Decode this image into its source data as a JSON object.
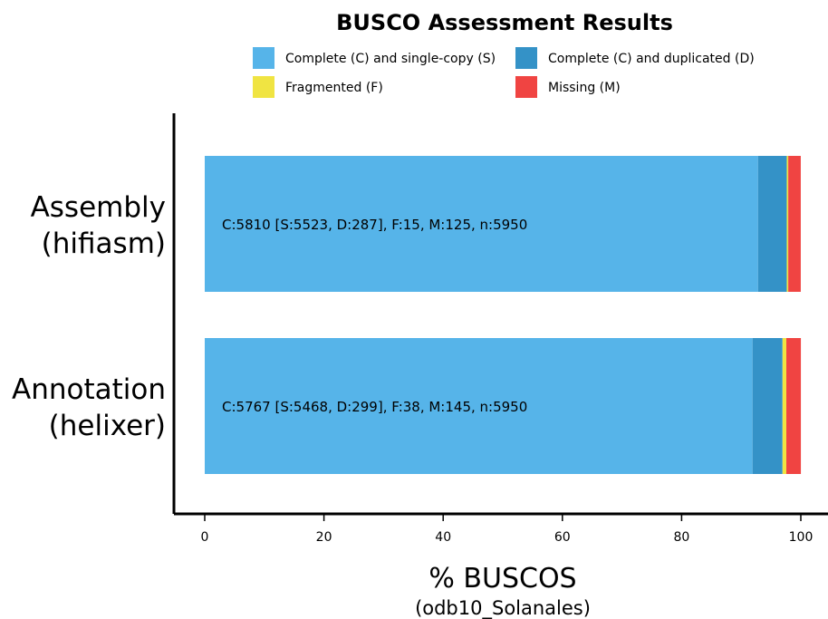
{
  "chart_data": {
    "type": "bar",
    "orientation": "horizontal",
    "stacked": true,
    "title": "BUSCO Assessment Results",
    "categories": [
      {
        "line1": "Assembly",
        "line2": "(hifiasm)",
        "annotation": "C:5810 [S:5523, D:287], F:15, M:125, n:5950"
      },
      {
        "line1": "Annotation",
        "line2": "(helixer)",
        "annotation": "C:5767 [S:5468, D:299], F:38, M:145, n:5950"
      }
    ],
    "series": [
      {
        "name": "Complete (C) and single-copy (S)",
        "color": "#56B4E9",
        "values": [
          92.82,
          91.9
        ]
      },
      {
        "name": "Complete (C) and duplicated (D)",
        "color": "#3492C7",
        "values": [
          4.82,
          5.03
        ]
      },
      {
        "name": "Fragmented (F)",
        "color": "#F0E442",
        "values": [
          0.25,
          0.64
        ]
      },
      {
        "name": "Missing (M)",
        "color": "#F04442",
        "values": [
          2.1,
          2.44
        ]
      }
    ],
    "xlabel": "% BUSCOS",
    "xsublabel": "(odb10_Solanales)",
    "xlim": [
      0,
      100
    ],
    "xticks": [
      0,
      20,
      40,
      60,
      80,
      100
    ],
    "legend_position": "top",
    "grid": false
  }
}
